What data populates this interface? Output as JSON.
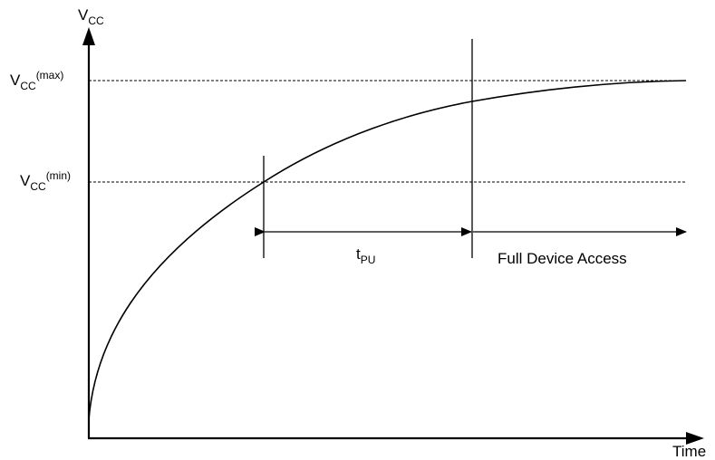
{
  "y_axis": {
    "label_main": "V",
    "label_sub": "CC"
  },
  "x_axis": {
    "label": "Time"
  },
  "levels": {
    "max": {
      "main": "V",
      "sub": "CC",
      "sup": "(max)"
    },
    "min": {
      "main": "V",
      "sub": "CC",
      "sup": "(min)"
    }
  },
  "intervals": {
    "power_up": {
      "main": "t",
      "sub": "PU"
    },
    "access": {
      "label": "Full Device Access"
    }
  },
  "colors": {
    "stroke": "#000000",
    "background": "#ffffff"
  }
}
